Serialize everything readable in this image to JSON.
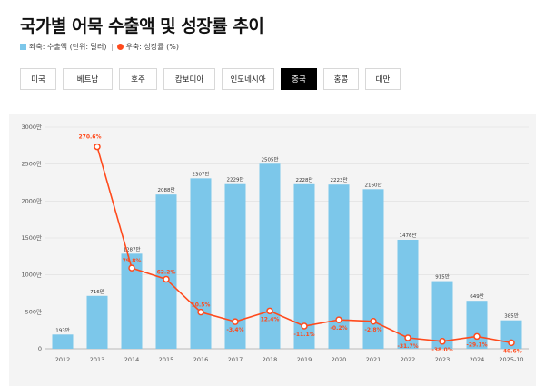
{
  "header": {
    "title": "국가별 어묵 수출액 및 성장률 추이",
    "legend_bar": "좌축: 수출액 (단위: 달러)",
    "legend_line": "우축: 성장률 (%)"
  },
  "tabs": [
    {
      "label": "미국",
      "active": false
    },
    {
      "label": "베트남",
      "active": false
    },
    {
      "label": "호주",
      "active": false
    },
    {
      "label": "캄보디아",
      "active": false
    },
    {
      "label": "인도네시아",
      "active": false
    },
    {
      "label": "중국",
      "active": true
    },
    {
      "label": "홍콩",
      "active": false
    },
    {
      "label": "대만",
      "active": false
    }
  ],
  "colors": {
    "bar": "#7cc7ea",
    "line": "#ff4a1c",
    "tab_active_bg": "#000000"
  },
  "chart_data": {
    "type": "bar+line",
    "categories": [
      "2012",
      "2013",
      "2014",
      "2015",
      "2016",
      "2017",
      "2018",
      "2019",
      "2020",
      "2021",
      "2022",
      "2023",
      "2024",
      "2025-10"
    ],
    "series": [
      {
        "name": "수출액 (단위: 달러)",
        "axis": "left",
        "kind": "bar",
        "values": [
          193,
          716,
          1287,
          2088,
          2307,
          2229,
          2505,
          2228,
          2223,
          2160,
          1476,
          915,
          649,
          385
        ],
        "labels": [
          "193만",
          "716만",
          "1287만",
          "2088만",
          "2307만",
          "2229만",
          "2505만",
          "2228만",
          "2223만",
          "2160만",
          "1476만",
          "915만",
          "649만",
          "385만"
        ]
      },
      {
        "name": "성장률 (%)",
        "axis": "right",
        "kind": "line",
        "values": [
          null,
          270.6,
          79.8,
          62.2,
          10.5,
          -3.4,
          12.4,
          -11.1,
          -0.2,
          -2.8,
          -31.7,
          -38.0,
          -29.1,
          -40.6
        ],
        "labels": [
          "",
          "270.6%",
          "79.8%",
          "62.2%",
          "10.5%",
          "-3.4%",
          "12.4%",
          "-11.1%",
          "-0.2%",
          "-2.8%",
          "-31.7%",
          "-38.0%",
          "-29.1%",
          "-40.6%"
        ]
      }
    ],
    "y_left": {
      "ylim": [
        0,
        3000
      ],
      "ticks": [
        0,
        500,
        1000,
        1500,
        2000,
        2500,
        3000
      ],
      "tick_labels": [
        "0",
        "500만",
        "1000만",
        "1500만",
        "2000만",
        "2500만",
        "3000만"
      ]
    },
    "grid": true
  }
}
